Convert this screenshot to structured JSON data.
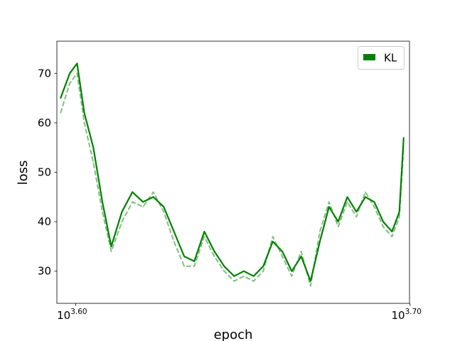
{
  "chart_data": {
    "type": "line",
    "title": "",
    "xlabel": "epoch",
    "ylabel": "loss",
    "x_scale": "log",
    "xlim": [
      3930,
      5010
    ],
    "ylim": [
      23.5,
      76.5
    ],
    "x_ticks": [
      {
        "value": 3981.07,
        "base": "10",
        "exponent": "3.60"
      },
      {
        "value": 5011.87,
        "base": "10",
        "exponent": "3.70"
      }
    ],
    "y_ticks": [
      30,
      40,
      50,
      60,
      70
    ],
    "y_tick_labels": [
      "30",
      "40",
      "50",
      "60",
      "70"
    ],
    "legend": {
      "position": "top-right",
      "entries": [
        {
          "label": "KL",
          "color": "#008000"
        }
      ]
    },
    "grid": false,
    "series": [
      {
        "name": "KL",
        "color": "#008000",
        "style": "solid",
        "x": [
          3940,
          3965,
          3985,
          4005,
          4030,
          4055,
          4080,
          4110,
          4140,
          4170,
          4200,
          4230,
          4260,
          4290,
          4320,
          4350,
          4380,
          4410,
          4440,
          4470,
          4500,
          4530,
          4560,
          4590,
          4620,
          4650,
          4680,
          4710,
          4740,
          4770,
          4800,
          4830,
          4860,
          4890,
          4920,
          4950,
          4975,
          4990
        ],
        "y": [
          65,
          70,
          72,
          62,
          55,
          44,
          35,
          42,
          46,
          44,
          45,
          43,
          38,
          33,
          32,
          38,
          34,
          31,
          29,
          30,
          29,
          31,
          36,
          34,
          30,
          33,
          28,
          36,
          43,
          40,
          45,
          42,
          45,
          44,
          40,
          38,
          42,
          57
        ]
      },
      {
        "name": "",
        "color": "#7fbf7f",
        "style": "dashed",
        "x": [
          3940,
          3965,
          3985,
          4005,
          4030,
          4055,
          4080,
          4110,
          4140,
          4170,
          4200,
          4230,
          4260,
          4290,
          4320,
          4350,
          4380,
          4410,
          4440,
          4470,
          4500,
          4530,
          4560,
          4590,
          4620,
          4650,
          4680,
          4710,
          4740,
          4770,
          4800,
          4830,
          4860,
          4890,
          4920,
          4950,
          4975,
          4990
        ],
        "y": [
          62,
          68,
          70,
          60,
          52,
          42,
          34,
          40,
          44,
          43,
          46,
          42,
          36,
          31,
          31,
          37,
          33,
          30,
          28,
          29,
          28,
          30,
          37,
          33,
          29,
          34,
          27,
          38,
          44,
          39,
          44,
          41,
          46,
          43,
          39,
          37,
          41,
          55
        ]
      }
    ]
  }
}
